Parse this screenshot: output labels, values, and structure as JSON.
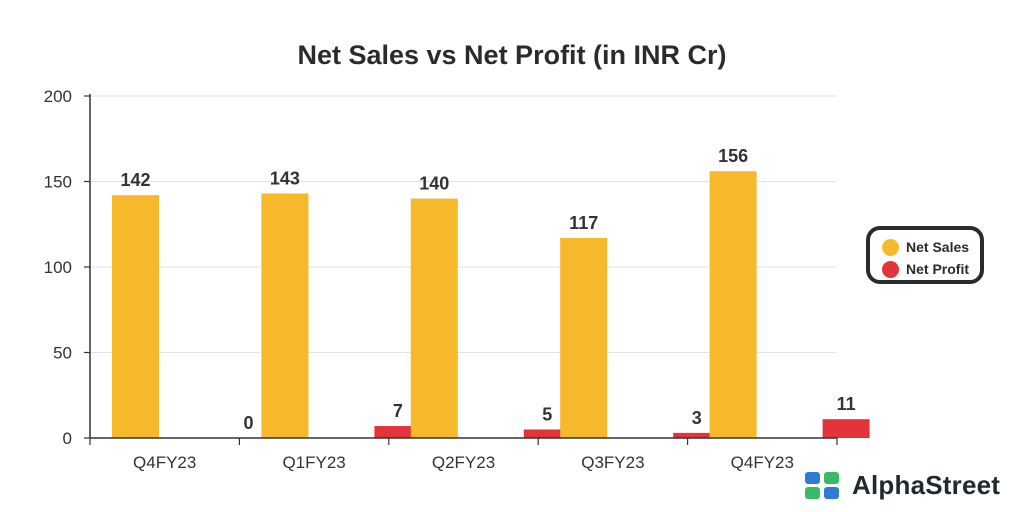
{
  "chart_data": {
    "type": "bar",
    "title": "Net Sales vs Net Profit (in INR Cr)",
    "categories": [
      "Q4FY23",
      "Q1FY23",
      "Q2FY23",
      "Q3FY23",
      "Q4FY23"
    ],
    "series": [
      {
        "name": "Net Sales",
        "values": [
          142,
          143,
          140,
          117,
          156
        ],
        "color": "#F6B92B"
      },
      {
        "name": "Net Profit",
        "values": [
          0,
          7,
          5,
          3,
          11
        ],
        "color": "#E3343A"
      }
    ],
    "ylim": [
      0,
      200
    ],
    "yticks": [
      0,
      50,
      100,
      150,
      200
    ],
    "grid": true,
    "legend_position": "right"
  },
  "brand": {
    "name": "AlphaStreet",
    "logo_icon": "alphastreet-logo-icon",
    "logo_colors": [
      "#2E7BD6",
      "#3BB86A"
    ]
  }
}
